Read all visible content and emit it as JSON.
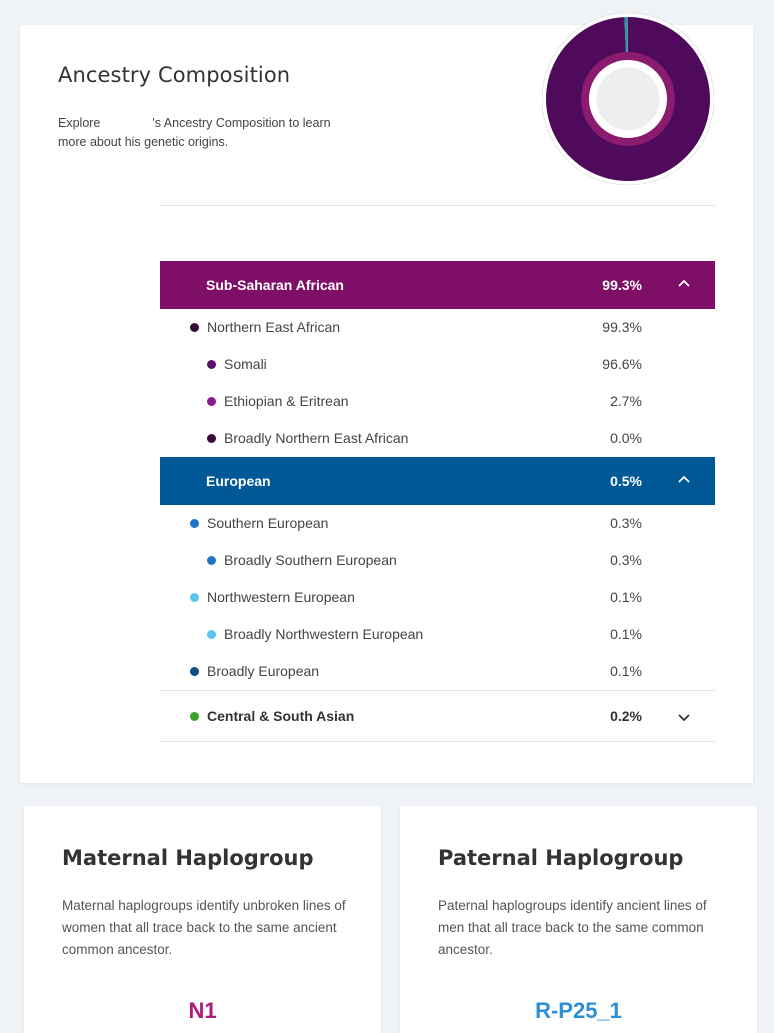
{
  "ancestry": {
    "title": "Ancestry Composition",
    "desc_before": "Explore",
    "desc_after": "'s Ancestry Composition to learn more about his genetic origins.",
    "donut": [
      {
        "name": "Sub-Saharan African",
        "value": 99.3,
        "color": "#4f0a5c"
      },
      {
        "name": "European",
        "value": 0.5,
        "color": "#2a8fd0"
      },
      {
        "name": "Central & South Asian",
        "value": 0.2,
        "color": "#3aa329"
      }
    ],
    "groups": [
      {
        "name": "Sub-Saharan African",
        "pct": "99.3%",
        "color": "#7f0f66",
        "rows": [
          {
            "name": "Northern East African",
            "pct": "99.3%",
            "dot": "#3b0a3a"
          },
          {
            "name": "Somali",
            "pct": "96.6%",
            "dot": "#59106a"
          },
          {
            "name": "Ethiopian & Eritrean",
            "pct": "2.7%",
            "dot": "#8a1b8f"
          },
          {
            "name": "Broadly Northern East African",
            "pct": "0.0%",
            "dot": "#3b0a3a"
          }
        ]
      },
      {
        "name": "European",
        "pct": "0.5%",
        "color": "#005896",
        "rows": [
          {
            "name": "Southern European",
            "pct": "0.3%",
            "dot": "#1f76c7"
          },
          {
            "name": "Broadly Southern European",
            "pct": "0.3%",
            "dot": "#1f76c7"
          },
          {
            "name": "Northwestern European",
            "pct": "0.1%",
            "dot": "#5bc4ec"
          },
          {
            "name": "Broadly Northwestern European",
            "pct": "0.1%",
            "dot": "#5bc4ec"
          },
          {
            "name": "Broadly European",
            "pct": "0.1%",
            "dot": "#0a4d85"
          }
        ]
      }
    ],
    "collapsed": {
      "name": "Central & South Asian",
      "pct": "0.2%",
      "dot": "#3aa329"
    }
  },
  "maternal": {
    "title": "Maternal Haplogroup",
    "desc": "Maternal haplogroups identify unbroken lines of women that all trace back to the same ancient common ancestor.",
    "value": "N1",
    "color": "#b01a7a"
  },
  "paternal": {
    "title": "Paternal Haplogroup",
    "desc": "Paternal haplogroups identify ancient lines of men that all trace back to the same common ancestor.",
    "value": "R-P25_1",
    "color": "#2d8fd4"
  }
}
